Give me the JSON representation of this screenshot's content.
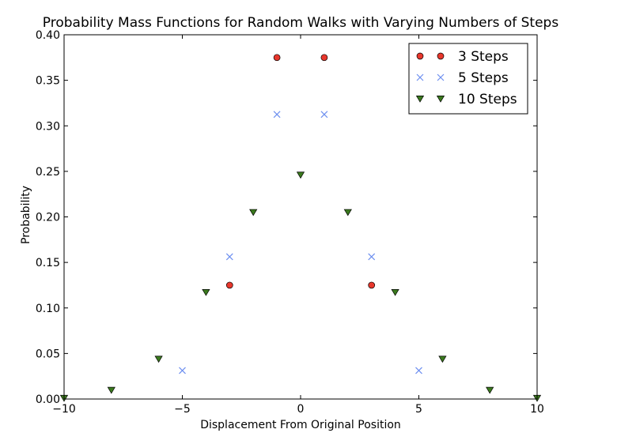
{
  "chart_data": {
    "type": "scatter",
    "title": "Probability Mass Functions for Random Walks with Varying Numbers of Steps",
    "xlabel": "Displacement From Original Position",
    "ylabel": "Probability",
    "xlim": [
      -10,
      10
    ],
    "ylim": [
      0,
      0.4
    ],
    "xticks": [
      -10,
      -5,
      0,
      5,
      10
    ],
    "xtick_labels": [
      "−10",
      "−5",
      "0",
      "5",
      "10"
    ],
    "yticks": [
      0.0,
      0.05,
      0.1,
      0.15,
      0.2,
      0.25,
      0.3,
      0.35,
      0.4
    ],
    "ytick_labels": [
      "0.00",
      "0.05",
      "0.10",
      "0.15",
      "0.20",
      "0.25",
      "0.30",
      "0.35",
      "0.40"
    ],
    "grid": false,
    "legend_position": "top-right",
    "series": [
      {
        "name": "3 Steps",
        "marker": "circle",
        "color": "#e8372c",
        "points": [
          [
            -3,
            0.125
          ],
          [
            -1,
            0.375
          ],
          [
            1,
            0.375
          ],
          [
            3,
            0.125
          ]
        ]
      },
      {
        "name": "5 Steps",
        "marker": "x",
        "color": "#6d8ff0",
        "points": [
          [
            -5,
            0.03125
          ],
          [
            -3,
            0.15625
          ],
          [
            -1,
            0.3125
          ],
          [
            1,
            0.3125
          ],
          [
            3,
            0.15625
          ],
          [
            5,
            0.03125
          ]
        ]
      },
      {
        "name": "10 Steps",
        "marker": "triangle-down",
        "color": "#3b7a1e",
        "points": [
          [
            -10,
            0.000977
          ],
          [
            -8,
            0.009766
          ],
          [
            -6,
            0.043945
          ],
          [
            -4,
            0.117188
          ],
          [
            -2,
            0.205078
          ],
          [
            0,
            0.246094
          ],
          [
            2,
            0.205078
          ],
          [
            4,
            0.117188
          ],
          [
            6,
            0.043945
          ],
          [
            8,
            0.009766
          ],
          [
            10,
            0.000977
          ]
        ]
      }
    ]
  }
}
